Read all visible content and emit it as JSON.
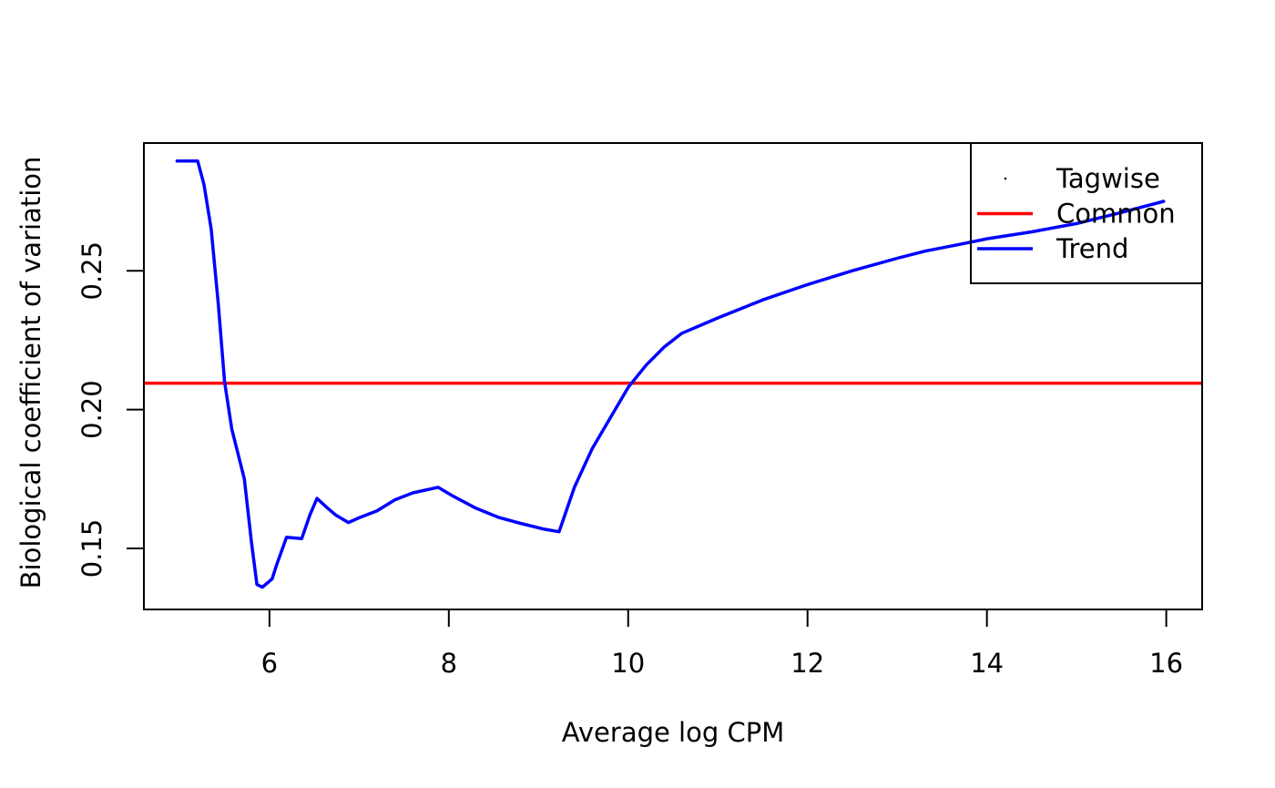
{
  "chart_data": {
    "type": "line",
    "title": "",
    "xlabel": "Average log CPM",
    "ylabel": "Biological coefficient of variation",
    "xlim": [
      4.6,
      16.4
    ],
    "ylim": [
      0.128,
      0.296
    ],
    "xticks": [
      6,
      8,
      10,
      12,
      14,
      16
    ],
    "xtick_labels": [
      "6",
      "8",
      "10",
      "12",
      "14",
      "16"
    ],
    "yticks": [
      0.15,
      0.2,
      0.25
    ],
    "ytick_labels": [
      "0.15",
      "0.20",
      "0.25"
    ],
    "grid": false,
    "legend_position": "top-right",
    "legend": [
      {
        "label": "Tagwise",
        "kind": "point",
        "color": "#000000"
      },
      {
        "label": "Common",
        "kind": "line",
        "color": "#ff0000"
      },
      {
        "label": "Trend",
        "kind": "line",
        "color": "#0000ff"
      }
    ],
    "series": [
      {
        "name": "Common",
        "kind": "hline",
        "color": "#ff0000",
        "y": 0.2095
      },
      {
        "name": "Trend",
        "kind": "line",
        "color": "#0000ff",
        "x": [
          4.97,
          5.2,
          5.27,
          5.35,
          5.43,
          5.5,
          5.58,
          5.65,
          5.72,
          5.8,
          5.86,
          5.92,
          6.03,
          6.08,
          6.19,
          6.36,
          6.45,
          6.53,
          6.63,
          6.74,
          6.88,
          7.0,
          7.2,
          7.4,
          7.6,
          7.88,
          8.05,
          8.3,
          8.55,
          8.8,
          9.05,
          9.23,
          9.4,
          9.6,
          9.8,
          10.0,
          10.2,
          10.4,
          10.6,
          11.0,
          11.5,
          12.0,
          12.5,
          13.0,
          13.3,
          13.7,
          14.0,
          14.5,
          15.0,
          15.5,
          15.97
        ],
        "y": [
          0.2895,
          0.2895,
          0.281,
          0.265,
          0.238,
          0.21,
          0.193,
          0.184,
          0.175,
          0.152,
          0.137,
          0.136,
          0.139,
          0.144,
          0.154,
          0.1535,
          0.162,
          0.168,
          0.165,
          0.162,
          0.1593,
          0.161,
          0.1635,
          0.1675,
          0.17,
          0.172,
          0.1688,
          0.1645,
          0.1612,
          0.159,
          0.157,
          0.156,
          0.172,
          0.186,
          0.197,
          0.208,
          0.216,
          0.2225,
          0.2275,
          0.233,
          0.2395,
          0.245,
          0.25,
          0.2545,
          0.257,
          0.2595,
          0.2615,
          0.264,
          0.267,
          0.271,
          0.275
        ]
      }
    ]
  }
}
